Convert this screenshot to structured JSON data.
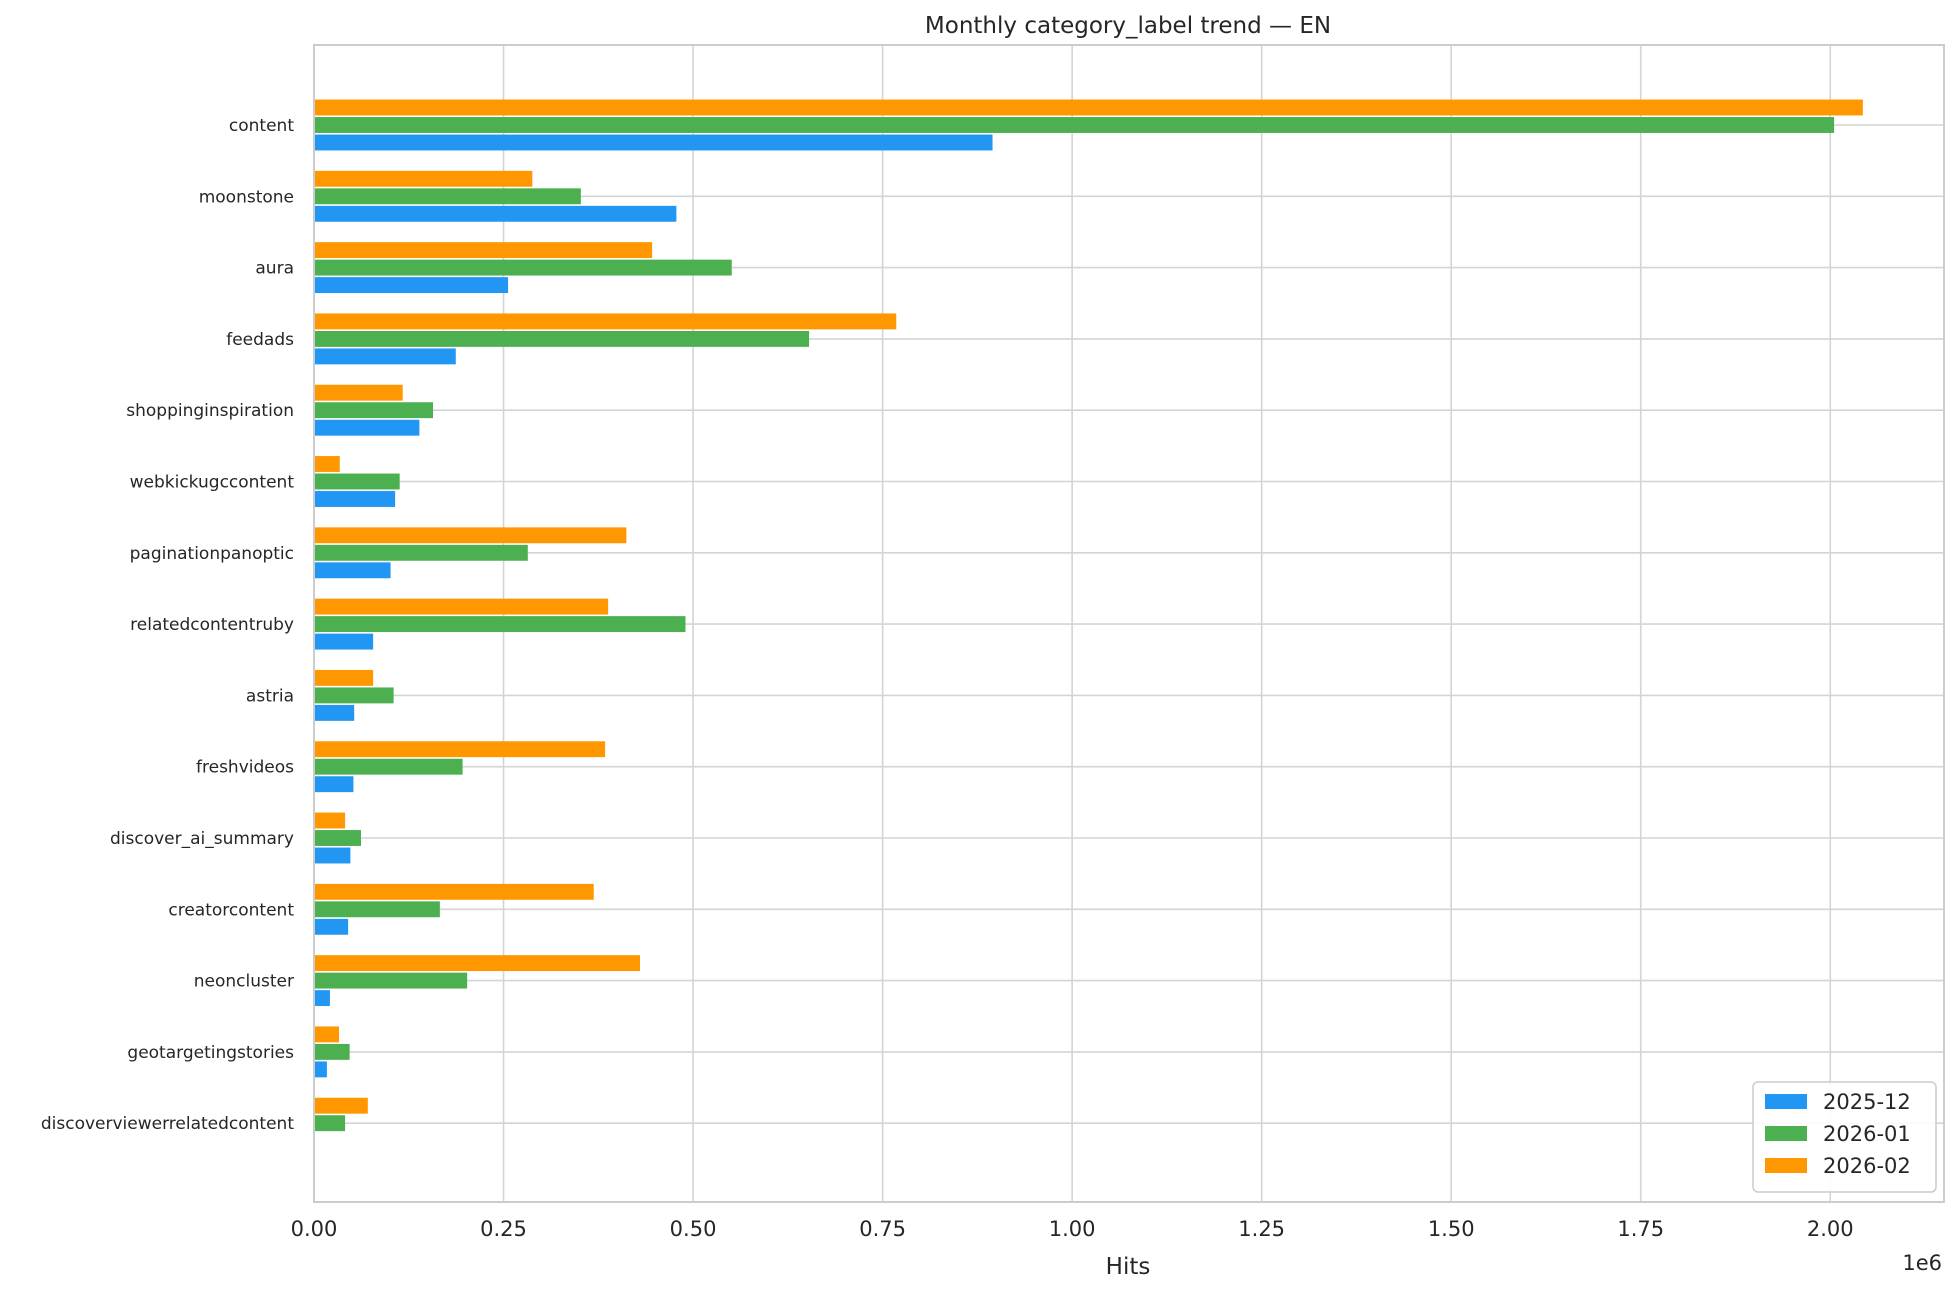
{
  "chart_data": {
    "type": "bar",
    "orientation": "horizontal",
    "title": "Monthly category_label trend — EN",
    "xlabel": "Hits",
    "ylabel": "",
    "x_multiplier_label": "1e6",
    "xlim": [
      0,
      2.15
    ],
    "x_ticks": [
      0.0,
      0.25,
      0.5,
      0.75,
      1.0,
      1.25,
      1.5,
      1.75,
      2.0
    ],
    "x_tick_labels": [
      "0.00",
      "0.25",
      "0.50",
      "0.75",
      "1.00",
      "1.25",
      "1.50",
      "1.75",
      "2.00"
    ],
    "grid": true,
    "legend_position": "bottom-right",
    "categories": [
      "content",
      "moonstone",
      "aura",
      "feedads",
      "shoppinginspiration",
      "webkickugccontent",
      "paginationpanoptic",
      "relatedcontentruby",
      "astria",
      "freshvideos",
      "discover_ai_summary",
      "creatorcontent",
      "neoncluster",
      "geotargetingstories",
      "discoverviewerrelatedcontent"
    ],
    "series": [
      {
        "name": "2025-12",
        "color": "#2196F3",
        "values": [
          0.895,
          0.478,
          0.256,
          0.187,
          0.139,
          0.107,
          0.101,
          0.078,
          0.053,
          0.052,
          0.048,
          0.045,
          0.021,
          0.017,
          0.0
        ]
      },
      {
        "name": "2026-01",
        "color": "#4CAF50",
        "values": [
          2.005,
          0.352,
          0.551,
          0.653,
          0.157,
          0.113,
          0.282,
          0.49,
          0.105,
          0.196,
          0.062,
          0.166,
          0.202,
          0.047,
          0.041
        ]
      },
      {
        "name": "2026-02",
        "color": "#FF9800",
        "values": [
          2.043,
          0.288,
          0.446,
          0.768,
          0.117,
          0.034,
          0.412,
          0.388,
          0.078,
          0.384,
          0.041,
          0.369,
          0.43,
          0.033,
          0.071
        ]
      }
    ]
  }
}
